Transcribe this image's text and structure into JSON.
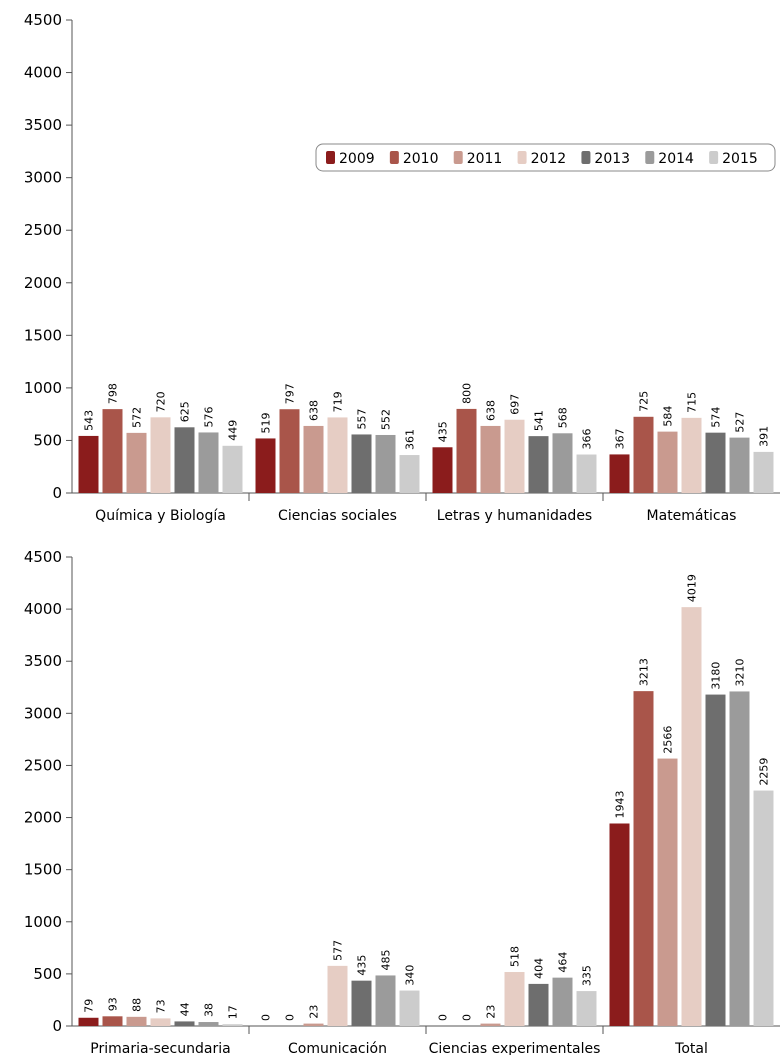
{
  "chart_data": [
    {
      "type": "bar",
      "categories": [
        "Química y Biología",
        "Ciencias sociales",
        "Letras y humanidades",
        "Matemáticas"
      ],
      "series": [
        {
          "name": "2009",
          "color": "#8b1c1c",
          "values": [
            543,
            519,
            435,
            367
          ]
        },
        {
          "name": "2010",
          "color": "#a9554a",
          "values": [
            798,
            797,
            800,
            725
          ]
        },
        {
          "name": "2011",
          "color": "#c99a8f",
          "values": [
            572,
            638,
            638,
            584
          ]
        },
        {
          "name": "2012",
          "color": "#e6cdc4",
          "values": [
            720,
            719,
            697,
            715
          ]
        },
        {
          "name": "2013",
          "color": "#6e6e6e",
          "values": [
            625,
            557,
            541,
            574
          ]
        },
        {
          "name": "2014",
          "color": "#9b9b9b",
          "values": [
            576,
            552,
            568,
            527
          ]
        },
        {
          "name": "2015",
          "color": "#cccccc",
          "values": [
            449,
            361,
            366,
            391
          ]
        }
      ],
      "y_ticks": [
        "0",
        "500",
        "1000",
        "1500",
        "2000",
        "2500",
        "3000",
        "3500",
        "4000",
        "4500"
      ],
      "ylim": [
        0,
        4500
      ],
      "legend": "top-right",
      "grid": false
    },
    {
      "type": "bar",
      "categories": [
        "Primaria-secundaria",
        "Comunicación",
        "Ciencias experimentales",
        "Total"
      ],
      "series": [
        {
          "name": "2009",
          "color": "#8b1c1c",
          "values": [
            79,
            0,
            0,
            1943
          ]
        },
        {
          "name": "2010",
          "color": "#a9554a",
          "values": [
            93,
            0,
            0,
            3213
          ]
        },
        {
          "name": "2011",
          "color": "#c99a8f",
          "values": [
            88,
            23,
            23,
            2566
          ]
        },
        {
          "name": "2012",
          "color": "#e6cdc4",
          "values": [
            73,
            577,
            518,
            4019
          ]
        },
        {
          "name": "2013",
          "color": "#6e6e6e",
          "values": [
            44,
            435,
            404,
            3180
          ]
        },
        {
          "name": "2014",
          "color": "#9b9b9b",
          "values": [
            38,
            485,
            464,
            3210
          ]
        },
        {
          "name": "2015",
          "color": "#cccccc",
          "values": [
            17,
            340,
            335,
            2259
          ]
        }
      ],
      "y_ticks": [
        "0",
        "500",
        "1000",
        "1500",
        "2000",
        "2500",
        "3000",
        "3500",
        "4000",
        "4500"
      ],
      "ylim": [
        0,
        4500
      ],
      "legend": "none",
      "grid": false
    }
  ]
}
